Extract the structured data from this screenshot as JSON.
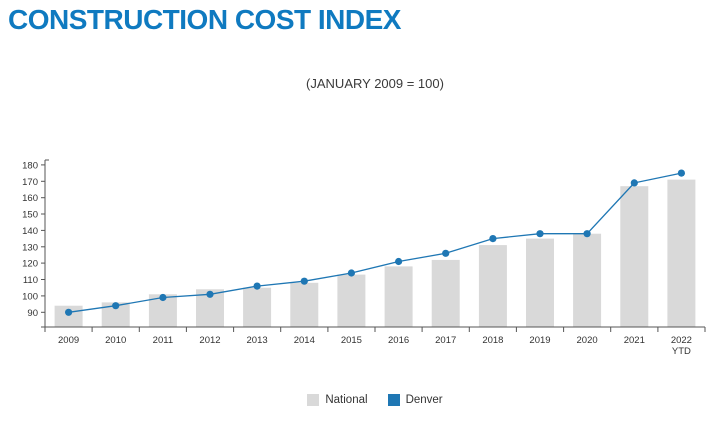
{
  "header": {
    "title": "CONSTRUCTION COST INDEX",
    "subtitle": "(JANUARY 2009 = 100)"
  },
  "colors": {
    "title_blue": "#0f7ac0",
    "denver_blue": "#1f77b4",
    "national_gray": "#d9d9d9",
    "axis_line": "#555555",
    "axis_text": "#333333"
  },
  "legend": [
    {
      "label": "National",
      "color": "#d9d9d9"
    },
    {
      "label": "Denver",
      "color": "#1f77b4"
    }
  ],
  "chart_data": {
    "type": "bar+line",
    "title": "CONSTRUCTION COST INDEX",
    "subtitle": "(JANUARY 2009 = 100)",
    "categories": [
      "2009",
      "2010",
      "2011",
      "2012",
      "2013",
      "2014",
      "2015",
      "2016",
      "2017",
      "2018",
      "2019",
      "2020",
      "2021",
      "2022 YTD"
    ],
    "series": [
      {
        "name": "National",
        "type": "bar",
        "color": "#d9d9d9",
        "values": [
          94,
          96,
          101,
          104,
          105,
          108,
          113,
          118,
          122,
          131,
          135,
          138,
          167,
          171
        ]
      },
      {
        "name": "Denver",
        "type": "line",
        "color": "#1f77b4",
        "values": [
          90,
          94,
          99,
          101,
          106,
          109,
          114,
          121,
          126,
          135,
          138,
          138,
          169,
          175
        ]
      }
    ],
    "xlabel": "",
    "ylabel": "",
    "ylim": [
      81,
      183
    ],
    "yticks": [
      90,
      100,
      110,
      120,
      130,
      140,
      150,
      160,
      170,
      180
    ],
    "grid": false,
    "legend_position": "bottom"
  }
}
